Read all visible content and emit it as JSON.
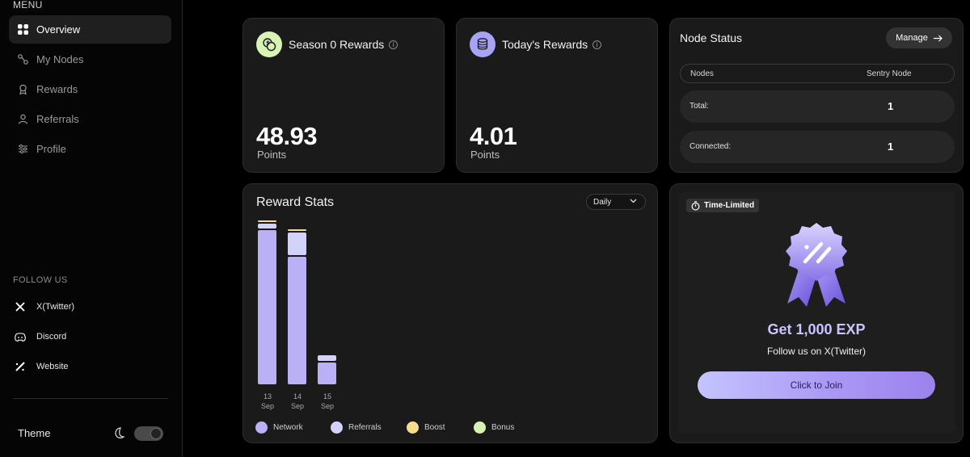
{
  "sidebar": {
    "menu_label": "MENU",
    "items": [
      {
        "label": "Overview",
        "icon": "grid-icon",
        "active": true
      },
      {
        "label": "My Nodes",
        "icon": "nodes-icon",
        "active": false
      },
      {
        "label": "Rewards",
        "icon": "award-icon",
        "active": false
      },
      {
        "label": "Referrals",
        "icon": "users-icon",
        "active": false
      },
      {
        "label": "Profile",
        "icon": "sliders-icon",
        "active": false
      }
    ],
    "follow_label": "FOLLOW US",
    "socials": [
      {
        "label": "X(Twitter)",
        "icon": "x-icon"
      },
      {
        "label": "Discord",
        "icon": "discord-icon"
      },
      {
        "label": "Website",
        "icon": "website-icon"
      }
    ],
    "theme_label": "Theme",
    "theme_dark": true
  },
  "season_rewards": {
    "title": "Season 0 Rewards",
    "value": "48.93",
    "unit": "Points",
    "badge_color": "#d7f3b5"
  },
  "today_rewards": {
    "title": "Today's Rewards",
    "value": "4.01",
    "unit": "Points",
    "badge_color": "#a9a3f5"
  },
  "node_status": {
    "title": "Node Status",
    "manage_label": "Manage",
    "col_nodes": "Nodes",
    "col_type": "Sentry Node",
    "rows": [
      {
        "label": "Total:",
        "value": "1"
      },
      {
        "label": "Connected:",
        "value": "1"
      }
    ]
  },
  "reward_stats": {
    "title": "Reward Stats",
    "period": "Daily"
  },
  "chart_data": {
    "type": "bar",
    "stacked": true,
    "categories": [
      [
        "13",
        "Sep"
      ],
      [
        "14",
        "Sep"
      ],
      [
        "15",
        "Sep"
      ]
    ],
    "series": [
      {
        "name": "Network",
        "color": "#b9b0f5",
        "values": [
          44.0,
          36.4,
          6.2
        ]
      },
      {
        "name": "Referrals",
        "color": "#d3d2fa",
        "values": [
          1.2,
          6.4,
          1.7
        ]
      },
      {
        "name": "Boost",
        "color": "#f7dc8d",
        "values": [
          0.4,
          0.3,
          0.0
        ]
      },
      {
        "name": "Bonus",
        "color": "#d6f2b3",
        "values": [
          0.0,
          0.0,
          0.0
        ]
      }
    ],
    "ylim": [
      0,
      46
    ],
    "grid": false,
    "legend": "bottom"
  },
  "promo": {
    "tag": "Time-Limited",
    "headline": "Get 1,000 EXP",
    "subtext": "Follow us on X(Twitter)",
    "button_label": "Click to Join"
  }
}
